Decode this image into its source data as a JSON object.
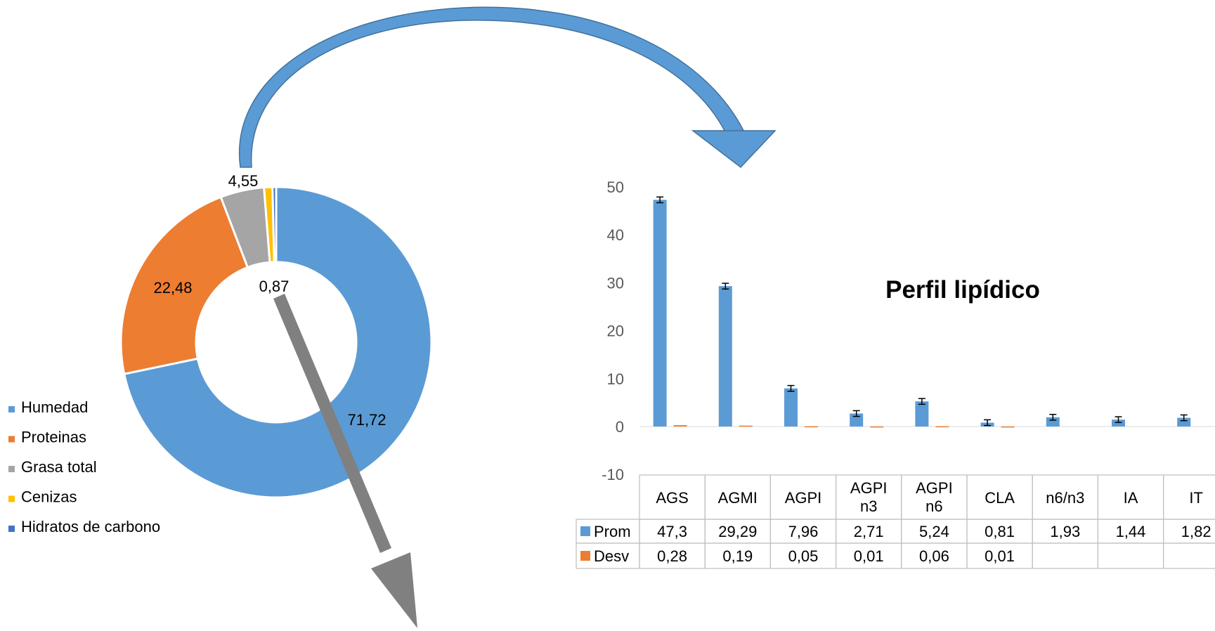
{
  "chart_data": [
    {
      "type": "pie",
      "variant": "doughnut",
      "legend_position": "left",
      "categories": [
        "Humedad",
        "Proteinas",
        "Grasa total",
        "Cenizas",
        "Hidratos de carbono"
      ],
      "values": [
        71.72,
        22.48,
        4.55,
        0.87,
        0.38
      ],
      "data_labels": [
        "71,72",
        "22,48",
        "4,55",
        "0,87",
        ""
      ],
      "colors": [
        "#5B9BD5",
        "#ED7D31",
        "#A5A5A5",
        "#FFC000",
        "#4472C4"
      ]
    },
    {
      "type": "bar",
      "title": "Perfil lipídico",
      "categories": [
        "AGS",
        "AGMI",
        "AGPI n3 ",
        "AGPI n3",
        "AGPI n6",
        "CLA",
        "n6/n3",
        "IA",
        "IT"
      ],
      "category_labels": [
        [
          "AGS"
        ],
        [
          "AGMI"
        ],
        [
          "AGPI"
        ],
        [
          "AGPI",
          "n3"
        ],
        [
          "AGPI",
          "n6"
        ],
        [
          "CLA"
        ],
        [
          "n6/n3"
        ],
        [
          "IA"
        ],
        [
          "IT"
        ]
      ],
      "ylim": [
        -10,
        50
      ],
      "yticks": [
        -10,
        0,
        10,
        20,
        30,
        40,
        50
      ],
      "grid": false,
      "data_table": true,
      "series": [
        {
          "name": "Prom",
          "color": "#5B9BD5",
          "values": [
            47.3,
            29.29,
            7.96,
            2.71,
            5.24,
            0.81,
            1.93,
            1.44,
            1.82
          ],
          "labels": [
            "47,3",
            "29,29",
            "7,96",
            "2,71",
            "5,24",
            "0,81",
            "1,93",
            "1,44",
            "1,82"
          ],
          "error_bars": true
        },
        {
          "name": "Desv",
          "color": "#ED7D31",
          "values": [
            0.28,
            0.19,
            0.05,
            0.01,
            0.06,
            0.01,
            null,
            null,
            null
          ],
          "labels": [
            "0,28",
            "0,19",
            "0,05",
            "0,01",
            "0,06",
            "0,01",
            "",
            "",
            ""
          ]
        }
      ]
    }
  ],
  "connectors": {
    "curved_arrow_color": "#5B9BD5",
    "straight_arrow_color": "#808080"
  }
}
